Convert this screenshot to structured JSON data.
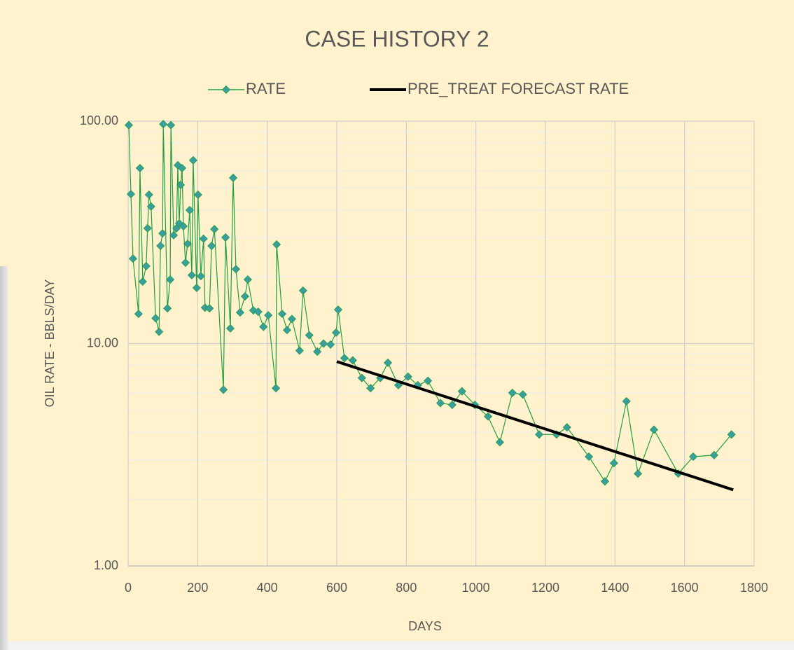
{
  "chart_data": {
    "type": "line",
    "title": "CASE HISTORY 2",
    "x_label": "DAYS",
    "y_label": "OIL RATE - BBLS/DAY",
    "log_y": true,
    "grid": true,
    "minor_grid": true,
    "legend": "top",
    "xlim": [
      0,
      1800
    ],
    "xticks": [
      0,
      200,
      400,
      600,
      800,
      1000,
      1200,
      1400,
      1600,
      1800
    ],
    "ylim": [
      1,
      100
    ],
    "yticks": [
      {
        "value": 1,
        "label": "1.00"
      },
      {
        "value": 10,
        "label": "10.00"
      },
      {
        "value": 100,
        "label": "100.00"
      }
    ],
    "series": [
      {
        "name": "RATE",
        "color": "#22a03c",
        "marker_color": "#3a9ea0",
        "marker": "diamond",
        "x": [
          2,
          8,
          14,
          30,
          34,
          42,
          52,
          56,
          60,
          66,
          79,
          89,
          93,
          99,
          101,
          113,
          121,
          123,
          131,
          139,
          143,
          147,
          151,
          155,
          159,
          165,
          171,
          177,
          183,
          187,
          197,
          201,
          209,
          217,
          221,
          234,
          240,
          248,
          274,
          280,
          294,
          302,
          310,
          322,
          336,
          344,
          360,
          374,
          389,
          403,
          425,
          427,
          443,
          457,
          471,
          493,
          503,
          521,
          544,
          562,
          582,
          598,
          604,
          622,
          646,
          672,
          697,
          725,
          747,
          777,
          805,
          833,
          862,
          898,
          932,
          960,
          997,
          1035,
          1069,
          1105,
          1135,
          1182,
          1232,
          1262,
          1325,
          1371,
          1397,
          1433,
          1466,
          1512,
          1582,
          1625,
          1685,
          1735
        ],
        "values": [
          96,
          47,
          24.1,
          13.6,
          61.5,
          19.0,
          22.3,
          33.0,
          46.7,
          41.3,
          13.0,
          11.3,
          27.5,
          31.3,
          97,
          14.4,
          19.4,
          96,
          30.7,
          33.0,
          63.4,
          34.7,
          51.7,
          61.5,
          33.7,
          23.1,
          28.1,
          39.8,
          20.3,
          66.7,
          17.8,
          46.7,
          20.1,
          29.6,
          14.5,
          14.4,
          27.5,
          32.7,
          6.2,
          30.0,
          11.7,
          55.6,
          21.6,
          13.8,
          16.3,
          19.4,
          14.1,
          13.9,
          11.9,
          13.4,
          6.3,
          27.9,
          13.6,
          11.5,
          12.9,
          9.3,
          17.3,
          10.9,
          9.2,
          10.0,
          9.9,
          11.2,
          14.2,
          8.6,
          8.4,
          7.0,
          6.3,
          7.0,
          8.2,
          6.5,
          7.1,
          6.5,
          6.8,
          5.4,
          5.3,
          6.1,
          5.3,
          4.7,
          3.6,
          6.0,
          5.9,
          3.9,
          3.9,
          4.2,
          3.1,
          2.4,
          2.9,
          5.5,
          2.6,
          4.1,
          2.6,
          3.1,
          3.15,
          3.9
        ]
      },
      {
        "name": "PRE_TREAT FORECAST RATE",
        "color": "#000000",
        "x": [
          600,
          1740
        ],
        "values": [
          8.3,
          2.2
        ]
      }
    ]
  }
}
